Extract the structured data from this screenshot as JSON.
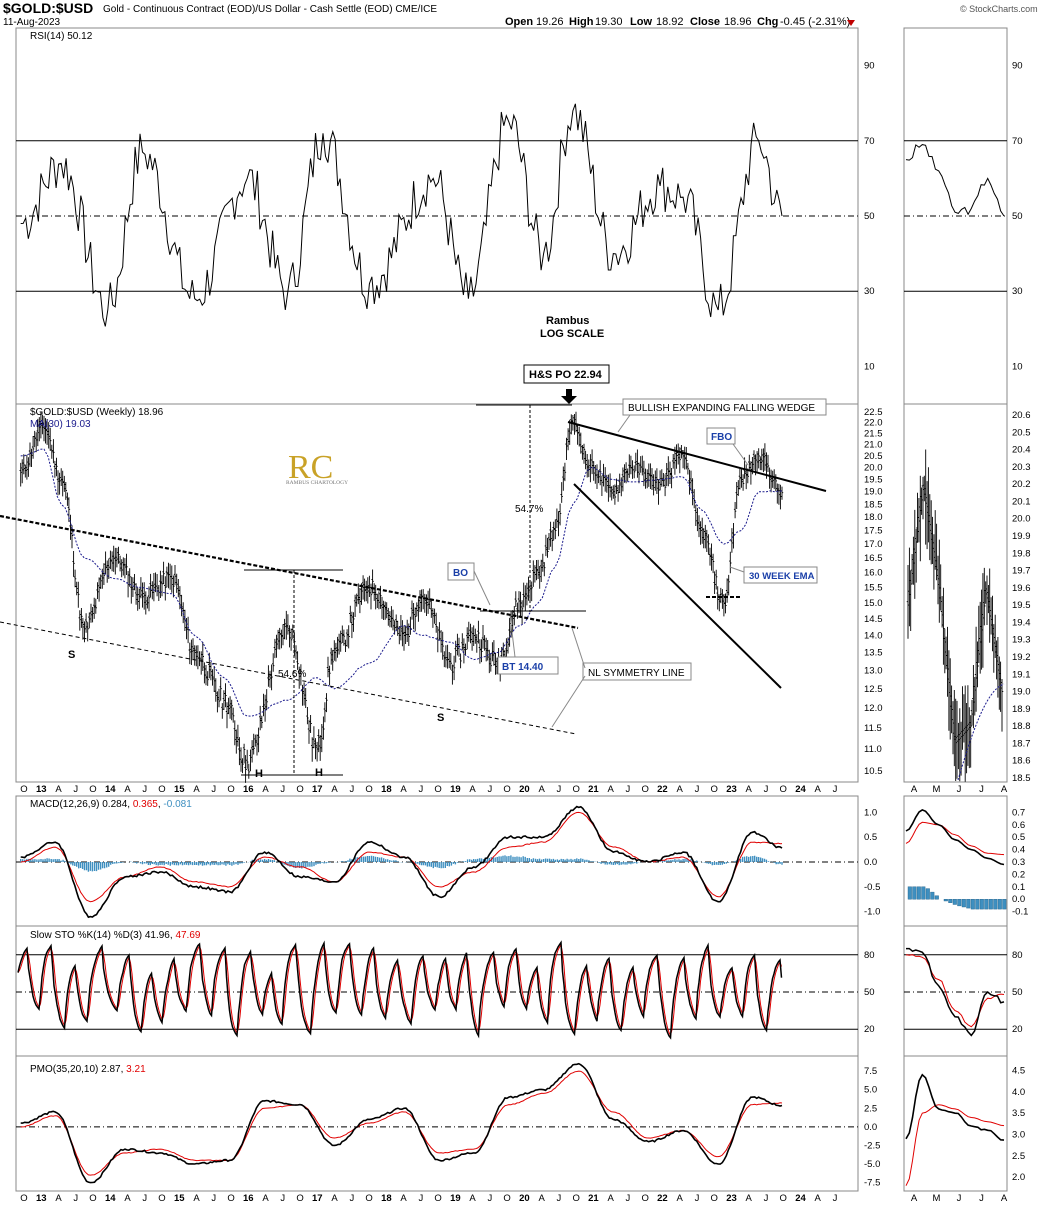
{
  "header": {
    "symbol": "$GOLD:$USD",
    "description": "Gold - Continuous Contract (EOD)/US Dollar - Cash Settle (EOD) CME/ICE",
    "date": "11-Aug-2023",
    "open_label": "Open",
    "open": "19.26",
    "high_label": "High",
    "high": "19.30",
    "low_label": "Low",
    "low": "18.92",
    "close_label": "Close",
    "close": "18.96",
    "chg_label": "Chg",
    "chg": "-0.45 (-2.31%)",
    "watermark": "© StockCharts.com"
  },
  "colors": {
    "price": "#000000",
    "ma": "#1a1a8c",
    "signal": "#e00000",
    "hist": "#3e8fc0",
    "label_blue": "#1a3fa8",
    "grid": "#000000"
  },
  "x_labels_main": [
    {
      "t": "O",
      "b": false
    },
    {
      "t": "13",
      "b": true
    },
    {
      "t": "A",
      "b": false
    },
    {
      "t": "J",
      "b": false
    },
    {
      "t": "O",
      "b": false
    },
    {
      "t": "14",
      "b": true
    },
    {
      "t": "A",
      "b": false
    },
    {
      "t": "J",
      "b": false
    },
    {
      "t": "O",
      "b": false
    },
    {
      "t": "15",
      "b": true
    },
    {
      "t": "A",
      "b": false
    },
    {
      "t": "J",
      "b": false
    },
    {
      "t": "O",
      "b": false
    },
    {
      "t": "16",
      "b": true
    },
    {
      "t": "A",
      "b": false
    },
    {
      "t": "J",
      "b": false
    },
    {
      "t": "O",
      "b": false
    },
    {
      "t": "17",
      "b": true
    },
    {
      "t": "A",
      "b": false
    },
    {
      "t": "J",
      "b": false
    },
    {
      "t": "O",
      "b": false
    },
    {
      "t": "18",
      "b": true
    },
    {
      "t": "A",
      "b": false
    },
    {
      "t": "J",
      "b": false
    },
    {
      "t": "O",
      "b": false
    },
    {
      "t": "19",
      "b": true
    },
    {
      "t": "A",
      "b": false
    },
    {
      "t": "J",
      "b": false
    },
    {
      "t": "O",
      "b": false
    },
    {
      "t": "20",
      "b": true
    },
    {
      "t": "A",
      "b": false
    },
    {
      "t": "J",
      "b": false
    },
    {
      "t": "O",
      "b": false
    },
    {
      "t": "21",
      "b": true
    },
    {
      "t": "A",
      "b": false
    },
    {
      "t": "J",
      "b": false
    },
    {
      "t": "O",
      "b": false
    },
    {
      "t": "22",
      "b": true
    },
    {
      "t": "A",
      "b": false
    },
    {
      "t": "J",
      "b": false
    },
    {
      "t": "O",
      "b": false
    },
    {
      "t": "23",
      "b": true
    },
    {
      "t": "A",
      "b": false
    },
    {
      "t": "J",
      "b": false
    },
    {
      "t": "O",
      "b": false
    },
    {
      "t": "24",
      "b": true
    },
    {
      "t": "A",
      "b": false
    },
    {
      "t": "J",
      "b": false
    }
  ],
  "x_labels_side": [
    "A",
    "M",
    "J",
    "J",
    "A"
  ],
  "annotations": {
    "rambus": "Rambus",
    "log_scale": "LOG SCALE",
    "hs_po": "H&S PO 22.94",
    "wedge": "BULLISH EXPANDING FALLING WEDGE",
    "fbo": "FBO",
    "ema30": "30 WEEK EMA",
    "bo": "BO",
    "bt": "BT 14.40",
    "nl": "NL SYMMETRY LINE",
    "pct1": "54.7%",
    "pct2": "54.6%",
    "s1": "S",
    "s2": "S",
    "h1": "H",
    "h2": "H",
    "logo_letters": "RC",
    "logo_text": "RAMBUS CHARTOLOGY"
  },
  "chart_data": [
    {
      "type": "line",
      "name": "rsi",
      "title": "RSI(14) 50.12",
      "last": 50.12,
      "ylim": [
        0,
        100
      ],
      "yticks": [
        10,
        30,
        50,
        70,
        90
      ],
      "levels": [
        30,
        50,
        70
      ],
      "x": [
        "2012-09",
        "2013-04",
        "2013-12",
        "2014-06",
        "2015-03",
        "2015-12",
        "2016-07",
        "2017-01",
        "2017-09",
        "2018-08",
        "2019-02",
        "2019-09",
        "2020-03",
        "2020-08",
        "2021-03",
        "2021-11",
        "2022-03",
        "2022-09",
        "2023-04",
        "2023-08"
      ],
      "values": [
        48,
        64,
        25,
        67,
        28,
        60,
        30,
        72,
        32,
        60,
        28,
        75,
        40,
        78,
        40,
        58,
        55,
        25,
        70,
        50
      ],
      "side_values": [
        65,
        69,
        62,
        51,
        52,
        60,
        50
      ]
    },
    {
      "type": "line",
      "name": "price",
      "title": "$GOLD:$USD (Weekly) 18.96",
      "ma_title": "MA(30) 19.03",
      "scale": "log",
      "ylim": [
        10.3,
        22.6
      ],
      "yticks": [
        10.5,
        11.0,
        11.5,
        12.0,
        12.5,
        13.0,
        13.5,
        14.0,
        14.5,
        15.0,
        15.5,
        16.0,
        16.5,
        17.0,
        17.5,
        18.0,
        18.5,
        19.0,
        19.5,
        20.0,
        20.5,
        21.0,
        21.5,
        22.0,
        22.5
      ],
      "side_yticks": [
        18.5,
        18.6,
        18.7,
        18.8,
        18.9,
        19.0,
        19.1,
        19.2,
        19.3,
        19.4,
        19.5,
        19.6,
        19.7,
        19.8,
        19.9,
        20.0,
        20.1,
        20.2,
        20.3,
        20.4,
        20.5,
        20.6
      ],
      "x": [
        "2012-09",
        "2013-01",
        "2013-04",
        "2013-08",
        "2014-01",
        "2014-06",
        "2014-11",
        "2015-03",
        "2015-08",
        "2015-12",
        "2016-07",
        "2016-12",
        "2017-03",
        "2017-09",
        "2018-03",
        "2018-06",
        "2018-11",
        "2019-03",
        "2019-07",
        "2019-11",
        "2020-02",
        "2020-05",
        "2020-08",
        "2020-11",
        "2021-03",
        "2021-06",
        "2021-11",
        "2022-03",
        "2022-06",
        "2022-10",
        "2023-01",
        "2023-04",
        "2023-08"
      ],
      "values": [
        19.8,
        21.8,
        19.5,
        14.2,
        16.5,
        15.2,
        15.8,
        13.5,
        12.2,
        10.7,
        14.2,
        11.0,
        13.5,
        15.5,
        14.0,
        15.2,
        13.2,
        14.0,
        13.2,
        15.0,
        16.0,
        17.5,
        22.0,
        20.0,
        19.0,
        20.0,
        19.3,
        20.5,
        17.5,
        15.0,
        19.5,
        20.5,
        18.96
      ],
      "ma_values": [
        20.5,
        20.8,
        18.5,
        16.5,
        15.8,
        15.5,
        15.3,
        14.0,
        12.8,
        11.8,
        12.2,
        12.8,
        12.5,
        13.2,
        14.3,
        14.0,
        13.8,
        13.3,
        13.5,
        14.3,
        15.0,
        16.2,
        18.5,
        20.0,
        19.5,
        19.4,
        19.5,
        19.6,
        18.3,
        17.0,
        17.5,
        19.0,
        19.03
      ],
      "side_values": [
        19.5,
        20.2,
        19.6,
        18.7,
        18.8,
        19.6,
        19.0
      ]
    },
    {
      "type": "line",
      "name": "macd",
      "title": "MACD(12,26,9) 0.284, 0.365, -0.081",
      "title_parts": [
        "MACD(12,26,9) 0.284, ",
        "0.365",
        ", ",
        "-0.081"
      ],
      "ylim": [
        -1.25,
        1.25
      ],
      "yticks": [
        -1.0,
        -0.5,
        0.0,
        0.5,
        1.0
      ],
      "side_yticks": [
        -0.1,
        0.0,
        0.1,
        0.2,
        0.3,
        0.4,
        0.5,
        0.6,
        0.7
      ],
      "x": [
        "2012-09",
        "2013-03",
        "2013-09",
        "2014-03",
        "2014-09",
        "2015-03",
        "2015-09",
        "2016-03",
        "2016-09",
        "2017-03",
        "2017-09",
        "2018-03",
        "2018-09",
        "2019-03",
        "2019-09",
        "2020-03",
        "2020-09",
        "2021-03",
        "2021-09",
        "2022-03",
        "2022-09",
        "2023-03",
        "2023-08"
      ],
      "values": [
        0.1,
        0.4,
        -1.1,
        -0.3,
        -0.2,
        -0.5,
        -0.6,
        0.2,
        -0.3,
        -0.4,
        0.4,
        0.1,
        -0.7,
        -0.1,
        0.5,
        0.5,
        1.1,
        0.2,
        0.0,
        0.2,
        -0.8,
        0.6,
        0.28
      ],
      "signal_values": [
        0.0,
        0.3,
        -0.8,
        -0.3,
        -0.1,
        -0.4,
        -0.5,
        0.1,
        -0.1,
        -0.4,
        0.2,
        0.1,
        -0.5,
        -0.2,
        0.3,
        0.4,
        1.0,
        0.3,
        0.0,
        0.1,
        -0.7,
        0.4,
        0.37
      ],
      "side_values": [
        0.55,
        0.72,
        0.6,
        0.48,
        0.4,
        0.33,
        0.28
      ],
      "side_signal": [
        0.45,
        0.62,
        0.6,
        0.52,
        0.43,
        0.37,
        0.36
      ],
      "side_hist": [
        0.1,
        0.1,
        0.0,
        -0.05,
        -0.08,
        -0.08,
        -0.08
      ]
    },
    {
      "type": "line",
      "name": "sto",
      "title": "Slow STO %K(14) %D(3) 41.96, 47.69",
      "title_parts": [
        "Slow STO %K(14) %D(3) 41.96, ",
        "47.69"
      ],
      "ylim": [
        0,
        100
      ],
      "yticks": [
        20,
        50,
        80
      ],
      "levels": [
        20,
        50,
        80
      ],
      "x": [
        "2012-09",
        "2013-03",
        "2013-09",
        "2014-03",
        "2014-09",
        "2015-03",
        "2015-09",
        "2016-03",
        "2016-09",
        "2017-03",
        "2017-09",
        "2018-03",
        "2018-09",
        "2019-03",
        "2019-09",
        "2020-03",
        "2020-09",
        "2021-03",
        "2021-09",
        "2022-03",
        "2022-09",
        "2023-03",
        "2023-08"
      ],
      "values": [
        70,
        20,
        90,
        15,
        85,
        20,
        80,
        95,
        10,
        90,
        20,
        85,
        15,
        90,
        30,
        95,
        20,
        85,
        15,
        90,
        10,
        95,
        42
      ],
      "d_values": [
        65,
        25,
        85,
        20,
        80,
        25,
        75,
        90,
        15,
        85,
        25,
        80,
        20,
        85,
        35,
        90,
        25,
        80,
        20,
        85,
        15,
        90,
        48
      ],
      "side_values": [
        85,
        82,
        55,
        30,
        15,
        50,
        42
      ],
      "side_d": [
        80,
        78,
        60,
        35,
        22,
        45,
        48
      ]
    },
    {
      "type": "line",
      "name": "pmo",
      "title": "PMO(35,20,10) 2.87, 3.21",
      "title_parts": [
        "PMO(35,20,10) 2.87, ",
        "3.21"
      ],
      "ylim": [
        -8.5,
        9.0
      ],
      "yticks": [
        -7.5,
        -5.0,
        -2.5,
        0.0,
        2.5,
        5.0,
        7.5
      ],
      "side_yticks": [
        2.0,
        2.5,
        3.0,
        3.5,
        4.0,
        4.5
      ],
      "x": [
        "2012-09",
        "2013-03",
        "2013-09",
        "2014-03",
        "2014-09",
        "2015-03",
        "2015-09",
        "2016-03",
        "2016-09",
        "2017-03",
        "2017-09",
        "2018-03",
        "2018-09",
        "2019-03",
        "2019-09",
        "2020-03",
        "2020-09",
        "2021-03",
        "2021-09",
        "2022-03",
        "2022-09",
        "2023-03",
        "2023-08"
      ],
      "values": [
        0.5,
        2.0,
        -7.5,
        -3.0,
        -3.5,
        -5.0,
        -4.5,
        3.5,
        3.0,
        -2.5,
        1.0,
        2.5,
        -4.5,
        -3.5,
        4.0,
        5.0,
        8.5,
        1.0,
        -2.0,
        -0.5,
        -5.0,
        4.0,
        2.87
      ],
      "signal_values": [
        0.0,
        1.5,
        -6.5,
        -3.5,
        -3.0,
        -4.5,
        -4.5,
        2.5,
        3.0,
        -1.5,
        0.5,
        2.0,
        -3.5,
        -3.0,
        3.0,
        4.5,
        7.5,
        2.0,
        -1.5,
        -0.5,
        -4.0,
        3.0,
        3.21
      ],
      "side_values": [
        2.9,
        4.4,
        3.6,
        3.5,
        3.2,
        3.1,
        2.87
      ],
      "side_signal": [
        1.8,
        3.5,
        3.7,
        3.6,
        3.4,
        3.3,
        3.21
      ]
    }
  ]
}
